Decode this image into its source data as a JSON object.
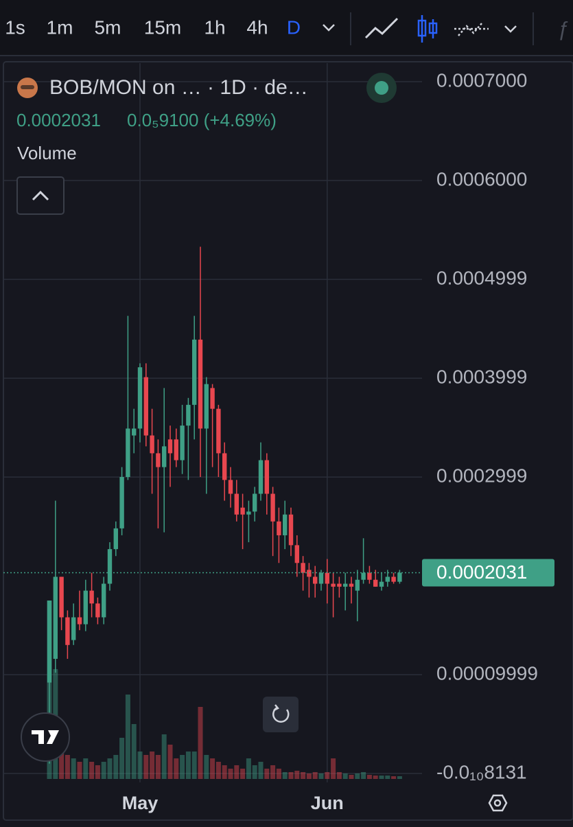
{
  "toolbar": {
    "intervals": [
      "1s",
      "1m",
      "5m",
      "15m",
      "1h",
      "4h",
      "D"
    ],
    "active": "D"
  },
  "chart_data": {
    "type": "candlestick",
    "title": "BOB/MON on … · 1D · de…",
    "last_price": 0.0002031,
    "last_price_label": "0.0002031",
    "change_label": "0.0₅9100 (+4.69%)",
    "volume_label": "Volume",
    "up_color": "#3fa086",
    "down_color": "#e8474f",
    "categories": [
      null,
      null,
      null,
      null,
      null,
      null,
      null,
      null,
      null,
      null,
      null,
      null,
      null,
      null,
      null,
      "May",
      null,
      null,
      null,
      null,
      null,
      null,
      null,
      null,
      null,
      null,
      null,
      null,
      null,
      null,
      null,
      null,
      null,
      null,
      null,
      null,
      null,
      null,
      null,
      null,
      null,
      null,
      null,
      null,
      null,
      null,
      "Jun",
      null,
      null,
      null,
      null,
      null,
      null,
      null,
      null,
      null,
      null,
      null,
      null
    ],
    "open": [
      9.2e-05,
      0.000116,
      0.000199,
      0.000158,
      0.000135,
      0.000158,
      0.000151,
      0.000185,
      0.000172,
      0.000158,
      0.000192,
      0.000227,
      0.000248,
      0.0003,
      0.000342,
      0.000349,
      0.000401,
      0.000342,
      0.000324,
      0.00031,
      0.000338,
      0.000338,
      0.000317,
      0.000352,
      0.000373,
      0.000439,
      0.000349,
      0.00039,
      0.000369,
      0.000324,
      0.000297,
      0.000283,
      0.000269,
      0.000262,
      0.000265,
      0.000283,
      0.000317,
      0.000283,
      0.000255,
      0.000241,
      0.000262,
      0.000231,
      0.000213,
      0.000206,
      0.000199,
      0.000192,
      0.000203,
      0.000192,
      0.000192,
      0.000189,
      0.000192,
      0.000185,
      0.000196,
      0.000203,
      0.000196,
      0.000189,
      0.000194,
      0.000199,
      0.000194
    ],
    "high": [
      0.000175,
      0.000276,
      0.000199,
      0.000165,
      0.000172,
      0.000185,
      0.000196,
      0.000203,
      0.000178,
      0.000199,
      0.000234,
      0.000255,
      0.00031,
      0.000463,
      0.000369,
      0.000415,
      0.000415,
      0.000369,
      0.000338,
      0.00039,
      0.000352,
      0.000349,
      0.000373,
      0.00038,
      0.000463,
      0.000533,
      0.000401,
      0.000394,
      0.000373,
      0.000335,
      0.00031,
      0.000297,
      0.000283,
      0.000276,
      0.00029,
      0.000335,
      0.000324,
      0.00029,
      0.000269,
      0.000276,
      0.000269,
      0.000241,
      0.00022,
      0.000213,
      0.00021,
      0.000206,
      0.000217,
      0.000203,
      0.000199,
      0.000203,
      0.000199,
      0.000206,
      0.000238,
      0.00021,
      0.000206,
      0.000203,
      0.000206,
      0.000203,
      0.000206
    ],
    "low": [
      1e-05,
      0.000102,
      0.000145,
      0.000116,
      0.00013,
      0.000145,
      0.000144,
      0.000158,
      0.000151,
      0.000151,
      0.000185,
      0.00022,
      0.000241,
      0.000297,
      0.000324,
      0.000335,
      0.000331,
      0.000283,
      0.000248,
      0.000244,
      0.00029,
      0.00031,
      0.000303,
      0.000297,
      0.000338,
      0.0003,
      0.000283,
      0.00031,
      0.0003,
      0.000276,
      0.000269,
      0.000255,
      0.000227,
      0.000234,
      0.000255,
      0.000276,
      0.000262,
      0.00022,
      0.000213,
      0.000227,
      0.00022,
      0.000199,
      0.000185,
      0.000178,
      0.000178,
      0.000185,
      0.000172,
      0.000158,
      0.000178,
      0.000165,
      0.000172,
      0.000154,
      0.000192,
      0.000192,
      0.000189,
      0.000185,
      0.000189,
      0.000192,
      0.000192
    ],
    "close": [
      0.000175,
      0.000199,
      0.000158,
      0.00013,
      0.000158,
      0.000151,
      0.000185,
      0.000172,
      0.000158,
      0.000192,
      0.000227,
      0.000248,
      0.0003,
      0.000349,
      0.000349,
      0.000411,
      0.000342,
      0.000324,
      0.00031,
      0.000331,
      0.000324,
      0.000317,
      0.000352,
      0.000373,
      0.000439,
      0.000349,
      0.000394,
      0.000369,
      0.000324,
      0.000297,
      0.000283,
      0.000262,
      0.000262,
      0.000265,
      0.000283,
      0.000317,
      0.000283,
      0.000255,
      0.000241,
      0.000262,
      0.000231,
      0.000213,
      0.000203,
      0.000199,
      0.000192,
      0.000203,
      0.000192,
      0.000189,
      0.000189,
      0.000192,
      0.000189,
      0.000196,
      0.000203,
      0.000196,
      0.000189,
      0.000194,
      0.000199,
      0.000194,
      0.0002031
    ],
    "volume": [
      260,
      160,
      40,
      35,
      30,
      25,
      30,
      25,
      20,
      25,
      30,
      35,
      60,
      123,
      80,
      40,
      35,
      40,
      35,
      65,
      50,
      30,
      35,
      40,
      40,
      105,
      35,
      30,
      25,
      20,
      15,
      20,
      15,
      30,
      20,
      25,
      15,
      20,
      15,
      10,
      10,
      12,
      10,
      8,
      10,
      8,
      10,
      30,
      10,
      8,
      6,
      8,
      10,
      6,
      5,
      5,
      5,
      4,
      4
    ],
    "ylim": [
      -5.8e-06,
      0.00073
    ],
    "yticks": [
      {
        "value": 0.0007,
        "label": "0.0007000"
      },
      {
        "value": 0.0006,
        "label": "0.0006000"
      },
      0.0004999,
      0.0003999,
      0.0002999,
      9.999e-05,
      {
        "value": -8.131e-11,
        "label": "-0.0₁₀8131"
      }
    ],
    "grid": true
  }
}
